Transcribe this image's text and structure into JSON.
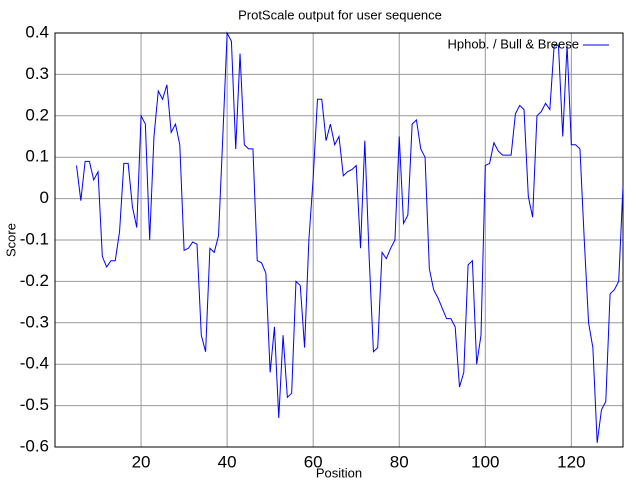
{
  "chart_data": {
    "type": "line",
    "title": "ProtScale  output  for  user sequence",
    "x_label": "Position",
    "y_label": "Score",
    "legend": "top-right",
    "grid": true,
    "xlim": [
      0,
      132
    ],
    "ylim": [
      -0.6,
      0.4
    ],
    "xticks": [
      20,
      40,
      60,
      80,
      100,
      120
    ],
    "yticks": [
      0.4,
      0.3,
      0.2,
      0.1,
      0,
      -0.1,
      -0.2,
      -0.3,
      -0.4,
      -0.5,
      -0.6
    ],
    "x": [
      5,
      6,
      7,
      8,
      9,
      10,
      11,
      12,
      13,
      14,
      15,
      16,
      17,
      18,
      19,
      20,
      21,
      22,
      23,
      24,
      25,
      26,
      27,
      28,
      29,
      30,
      31,
      32,
      33,
      34,
      35,
      36,
      37,
      38,
      39,
      40,
      41,
      42,
      43,
      44,
      45,
      46,
      47,
      48,
      49,
      50,
      51,
      52,
      53,
      54,
      55,
      56,
      57,
      58,
      59,
      60,
      61,
      62,
      63,
      64,
      65,
      66,
      67,
      68,
      69,
      70,
      71,
      72,
      73,
      74,
      75,
      76,
      77,
      78,
      79,
      80,
      81,
      82,
      83,
      84,
      85,
      86,
      87,
      88,
      89,
      90,
      91,
      92,
      93,
      94,
      95,
      96,
      97,
      98,
      99,
      100,
      101,
      102,
      103,
      104,
      105,
      106,
      107,
      108,
      109,
      110,
      111,
      112,
      113,
      114,
      115,
      116,
      117,
      118,
      119,
      120,
      121,
      122,
      123,
      124,
      125,
      126,
      127,
      128,
      129,
      130,
      131,
      132
    ],
    "series": [
      {
        "name": "Hphob.  /   Bull  & Breese",
        "color": "#0000ff",
        "values": [
          0.08,
          -0.005,
          0.09,
          0.09,
          0.045,
          0.065,
          -0.14,
          -0.165,
          -0.15,
          -0.15,
          -0.08,
          0.085,
          0.085,
          -0.02,
          -0.07,
          0.2,
          0.18,
          -0.1,
          0.15,
          0.26,
          0.24,
          0.275,
          0.16,
          0.18,
          0.13,
          -0.125,
          -0.12,
          -0.105,
          -0.11,
          -0.33,
          -0.37,
          -0.12,
          -0.13,
          -0.09,
          0.15,
          0.4,
          0.38,
          0.12,
          0.35,
          0.13,
          0.12,
          0.12,
          -0.15,
          -0.155,
          -0.18,
          -0.42,
          -0.31,
          -0.53,
          -0.33,
          -0.48,
          -0.47,
          -0.2,
          -0.21,
          -0.36,
          -0.1,
          0.05,
          0.24,
          0.24,
          0.14,
          0.18,
          0.13,
          0.15,
          0.055,
          0.065,
          0.07,
          0.08,
          -0.12,
          0.14,
          -0.14,
          -0.37,
          -0.36,
          -0.13,
          -0.145,
          -0.12,
          -0.1,
          0.15,
          -0.06,
          -0.04,
          0.18,
          0.19,
          0.12,
          0.1,
          -0.17,
          -0.22,
          -0.24,
          -0.265,
          -0.29,
          -0.29,
          -0.31,
          -0.455,
          -0.42,
          -0.16,
          -0.15,
          -0.4,
          -0.33,
          0.08,
          0.085,
          0.135,
          0.115,
          0.105,
          0.105,
          0.105,
          0.205,
          0.225,
          0.215,
          0.005,
          -0.045,
          0.2,
          0.21,
          0.23,
          0.215,
          0.37,
          0.37,
          0.15,
          0.37,
          0.13,
          0.13,
          0.12,
          -0.1,
          -0.3,
          -0.36,
          -0.59,
          -0.51,
          -0.49,
          -0.23,
          -0.22,
          -0.2,
          0.03
        ]
      }
    ]
  }
}
